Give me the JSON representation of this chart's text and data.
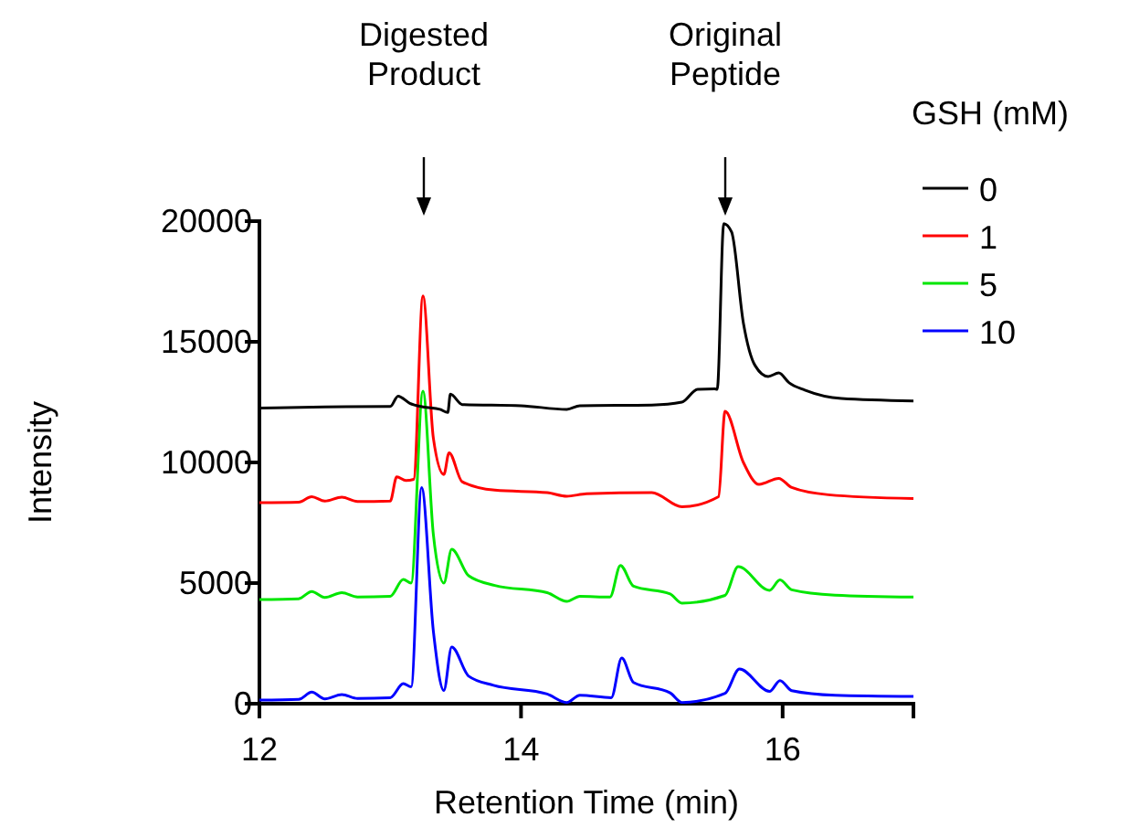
{
  "chart_data": {
    "type": "line",
    "xlabel": "Retention Time (min)",
    "ylabel": "Intensity",
    "legend_title": "GSH (mM)",
    "legend": "right",
    "xlim": [
      12,
      17
    ],
    "xticks": [
      12,
      14,
      16
    ],
    "ylim": [
      0,
      20000
    ],
    "yticks": [
      0,
      5000,
      10000,
      15000,
      20000
    ],
    "annotations": [
      "Digested Product",
      "Original Peptide"
    ],
    "series": [
      {
        "name": "0",
        "color": "#000000",
        "x": [
          12,
          12.5,
          13,
          13.06,
          13.15,
          13.25,
          13.38,
          13.44,
          13.46,
          13.55,
          14,
          14.35,
          14.45,
          15,
          15.23,
          15.35,
          15.48,
          15.5,
          15.55,
          15.61,
          15.7,
          15.79,
          15.89,
          15.97,
          16.05,
          16.17,
          16.45,
          17
        ],
        "values": [
          12250,
          12300,
          12320,
          12750,
          12450,
          12300,
          12200,
          12070,
          12830,
          12400,
          12350,
          12200,
          12350,
          12380,
          12500,
          13030,
          13050,
          13030,
          19900,
          19550,
          15780,
          14010,
          13560,
          13710,
          13300,
          13000,
          12650,
          12550
        ]
      },
      {
        "name": "1",
        "color": "#ff0000",
        "x": [
          12,
          12.3,
          12.4,
          12.5,
          12.63,
          12.75,
          13,
          13.05,
          13.12,
          13.18,
          13.25,
          13.33,
          13.41,
          13.45,
          13.55,
          13.8,
          14.2,
          14.35,
          14.5,
          15,
          15.23,
          15.51,
          15.56,
          15.7,
          15.82,
          15.97,
          16.07,
          16.35,
          17
        ],
        "values": [
          8330,
          8350,
          8580,
          8400,
          8560,
          8380,
          8400,
          9400,
          9250,
          9300,
          16900,
          11000,
          9500,
          10400,
          9200,
          8850,
          8750,
          8600,
          8700,
          8750,
          8160,
          8580,
          12120,
          10000,
          9090,
          9340,
          8960,
          8660,
          8500
        ]
      },
      {
        "name": "5",
        "color": "#00e600",
        "x": [
          12,
          12.3,
          12.4,
          12.5,
          12.63,
          12.75,
          13,
          13.1,
          13.16,
          13.25,
          13.33,
          13.41,
          13.47,
          13.6,
          13.8,
          14.2,
          14.35,
          14.45,
          14.68,
          14.76,
          14.86,
          15.14,
          15.23,
          15.56,
          15.66,
          15.9,
          15.98,
          16.07,
          16.4,
          17
        ],
        "values": [
          4320,
          4350,
          4650,
          4400,
          4600,
          4420,
          4450,
          5150,
          5000,
          12950,
          7000,
          5000,
          6400,
          5300,
          4900,
          4600,
          4240,
          4450,
          4420,
          5730,
          4870,
          4550,
          4170,
          4490,
          5680,
          4700,
          5130,
          4720,
          4500,
          4420
        ]
      },
      {
        "name": "10",
        "color": "#0000ff",
        "x": [
          12,
          12.3,
          12.4,
          12.5,
          12.63,
          12.75,
          13,
          13.1,
          13.16,
          13.24,
          13.33,
          13.41,
          13.47,
          13.6,
          13.79,
          14.2,
          14.35,
          14.45,
          14.69,
          14.77,
          14.86,
          15.14,
          15.23,
          15.56,
          15.67,
          15.9,
          15.98,
          16.07,
          16.4,
          17
        ],
        "values": [
          150,
          180,
          480,
          200,
          380,
          220,
          250,
          830,
          700,
          8960,
          3000,
          550,
          2350,
          1140,
          760,
          400,
          50,
          350,
          250,
          1890,
          880,
          450,
          50,
          430,
          1440,
          510,
          960,
          540,
          350,
          300
        ]
      }
    ]
  }
}
